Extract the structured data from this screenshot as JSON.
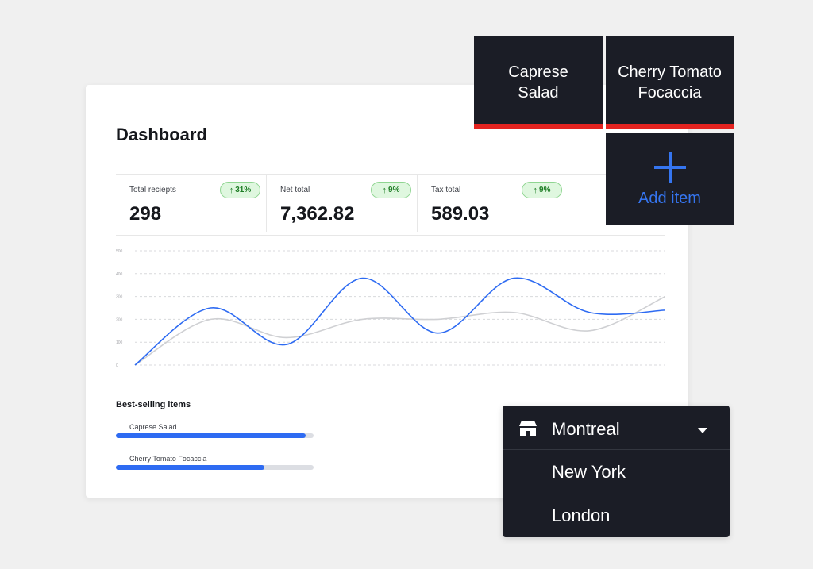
{
  "dashboard": {
    "title": "Dashboard",
    "metrics": [
      {
        "label": "Total reciepts",
        "value": "298",
        "change": "31%"
      },
      {
        "label": "Net total",
        "value": "7,362.82",
        "change": "9%"
      },
      {
        "label": "Tax total",
        "value": "589.03",
        "change": "9%"
      }
    ]
  },
  "chart_data": {
    "type": "line",
    "ylim": [
      0,
      500
    ],
    "y_ticks": [
      "500",
      "400",
      "300",
      "200",
      "100",
      "0"
    ],
    "grid": true,
    "series": [
      {
        "color": "#2e6bf2",
        "values": [
          0,
          250,
          90,
          380,
          140,
          380,
          230,
          240
        ]
      },
      {
        "color": "#cfd0d3",
        "values": [
          0,
          200,
          120,
          200,
          200,
          230,
          150,
          300
        ]
      }
    ]
  },
  "best_selling": {
    "title": "Best-selling items",
    "items": [
      {
        "name": "Caprese Salad",
        "fraction": 0.96
      },
      {
        "name": "Cherry Tomato Focaccia",
        "fraction": 0.75
      }
    ]
  },
  "tiles": {
    "items": [
      "Caprese\nSalad",
      "Cherry Tomato\nFocaccia"
    ],
    "add_label": "Add item",
    "accent": "#e42320",
    "add_color": "#3575f0"
  },
  "locations": {
    "icon": "store-icon",
    "selected": "Montreal",
    "options": [
      "New York",
      "London"
    ]
  }
}
